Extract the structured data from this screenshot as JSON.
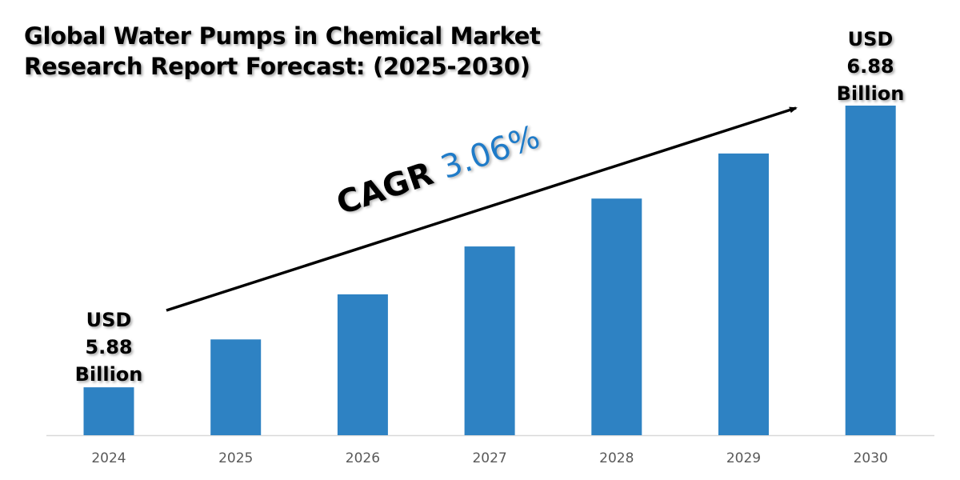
{
  "title_lines": [
    "Global Water Pumps in Chemical Market",
    "Research Report Forecast: (2025-2030)"
  ],
  "cagr": {
    "label": "CAGR",
    "value": "3.06%",
    "value_color": "#1F7BC8"
  },
  "callouts": {
    "start": {
      "lines": [
        "USD",
        "5.88",
        "Billion"
      ]
    },
    "end": {
      "lines": [
        "USD",
        "6.88",
        "Billion"
      ]
    }
  },
  "chart_data": {
    "type": "bar",
    "title": "Global Water Pumps in Chemical Market Research Report Forecast: (2025-2030)",
    "categories": [
      "2024",
      "2025",
      "2026",
      "2027",
      "2028",
      "2029",
      "2030"
    ],
    "values": [
      5.88,
      6.05,
      6.21,
      6.38,
      6.55,
      6.71,
      6.88
    ],
    "unit": "USD Billion",
    "ylim": [
      5.71,
      6.95
    ],
    "bar_color": "#2E82C3",
    "grid": false,
    "y_axis_shown": false,
    "annotation": "CAGR 3.06%"
  }
}
